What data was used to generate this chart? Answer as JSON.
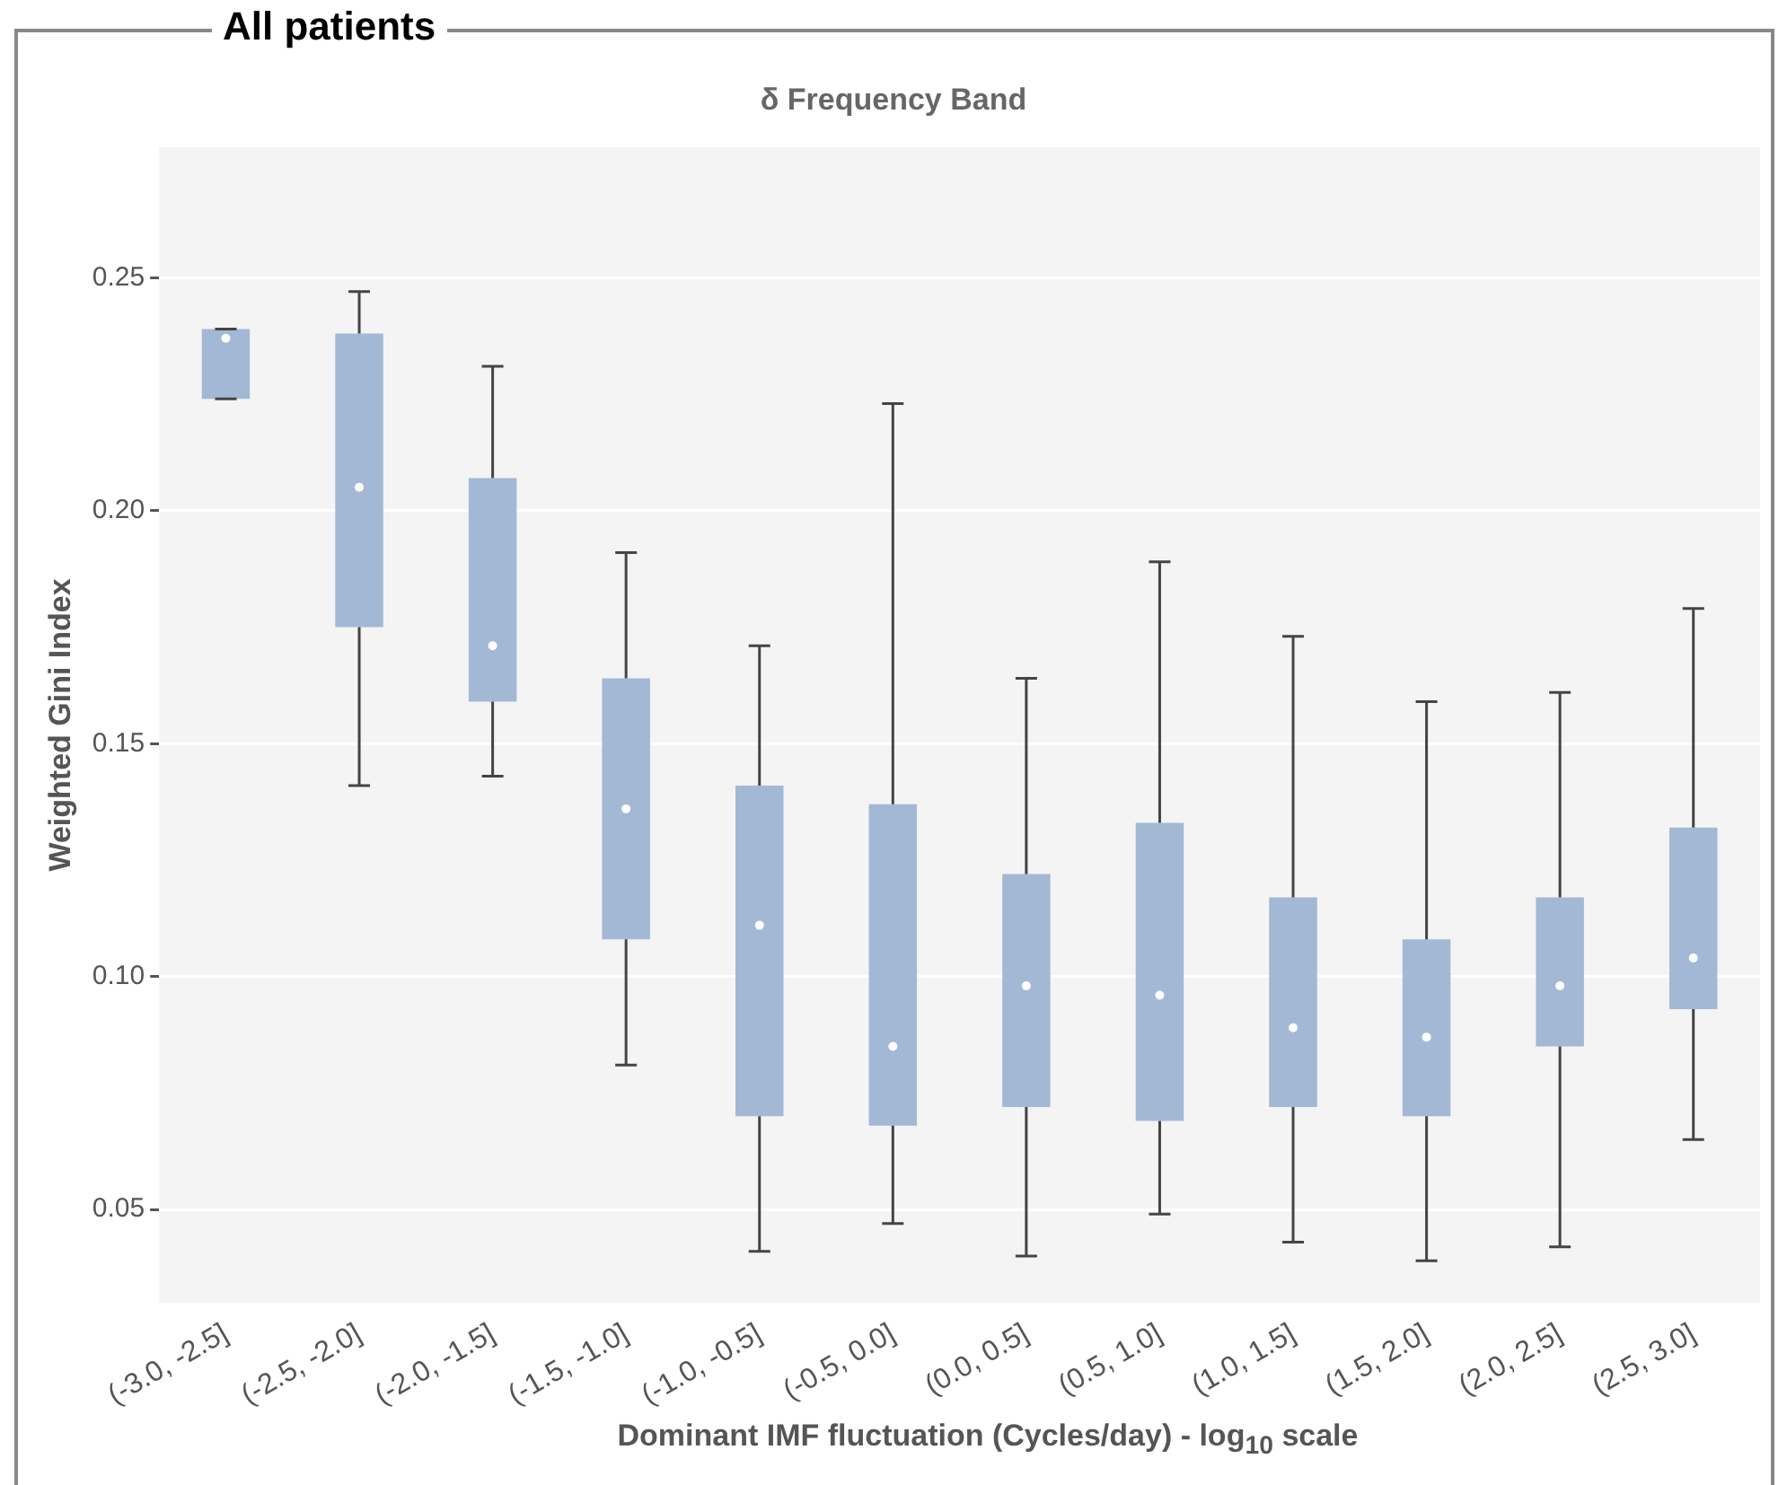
{
  "chart_data": {
    "type": "box",
    "title": "All patients",
    "subtitle": "δ Frequency Band",
    "xlabel": "Dominant IMF fluctuation (Cycles/day) - log$_{10}$ scale",
    "ylabel": "Weighted Gini Index",
    "categories": [
      "(-3.0, -2.5]",
      "(-2.5, -2.0]",
      "(-2.0, -1.5]",
      "(-1.5, -1.0]",
      "(-1.0, -0.5]",
      "(-0.5, 0.0]",
      "(0.0, 0.5]",
      "(0.5, 1.0]",
      "(1.0, 1.5]",
      "(1.5, 2.0]",
      "(2.0, 2.5]",
      "(2.5, 3.0]"
    ],
    "color": "#a3b8d4",
    "boxes": [
      {
        "low": 0.224,
        "q1": 0.224,
        "median": 0.237,
        "q3": 0.239,
        "high": 0.239
      },
      {
        "low": 0.141,
        "q1": 0.175,
        "median": 0.205,
        "q3": 0.238,
        "high": 0.247
      },
      {
        "low": 0.143,
        "q1": 0.159,
        "median": 0.171,
        "q3": 0.207,
        "high": 0.231
      },
      {
        "low": 0.081,
        "q1": 0.108,
        "median": 0.136,
        "q3": 0.164,
        "high": 0.191
      },
      {
        "low": 0.041,
        "q1": 0.07,
        "median": 0.111,
        "q3": 0.141,
        "high": 0.171
      },
      {
        "low": 0.047,
        "q1": 0.068,
        "median": 0.085,
        "q3": 0.137,
        "high": 0.223
      },
      {
        "low": 0.04,
        "q1": 0.072,
        "median": 0.098,
        "q3": 0.122,
        "high": 0.164
      },
      {
        "low": 0.049,
        "q1": 0.069,
        "median": 0.096,
        "q3": 0.133,
        "high": 0.189
      },
      {
        "low": 0.043,
        "q1": 0.072,
        "median": 0.089,
        "q3": 0.117,
        "high": 0.173
      },
      {
        "low": 0.039,
        "q1": 0.07,
        "median": 0.087,
        "q3": 0.108,
        "high": 0.159
      },
      {
        "low": 0.042,
        "q1": 0.085,
        "median": 0.098,
        "q3": 0.117,
        "high": 0.161
      },
      {
        "low": 0.065,
        "q1": 0.093,
        "median": 0.104,
        "q3": 0.132,
        "high": 0.179
      }
    ],
    "ylim": [
      0.03,
      0.278
    ],
    "yticks": [
      {
        "value": 0.05,
        "label": "0.05"
      },
      {
        "value": 0.1,
        "label": "0.10"
      },
      {
        "value": 0.15,
        "label": "0.15"
      },
      {
        "value": 0.2,
        "label": "0.20"
      },
      {
        "value": 0.25,
        "label": "0.25"
      }
    ],
    "grid": "y"
  }
}
